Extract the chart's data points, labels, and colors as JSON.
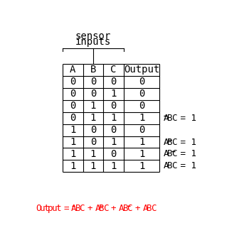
{
  "sensor_label": [
    "sensor",
    "inputs"
  ],
  "headers": [
    "A",
    "B",
    "C",
    "Output"
  ],
  "rows": [
    [
      "0",
      "0",
      "0",
      "0"
    ],
    [
      "0",
      "0",
      "1",
      "0"
    ],
    [
      "0",
      "1",
      "0",
      "0"
    ],
    [
      "0",
      "1",
      "1",
      "1"
    ],
    [
      "1",
      "0",
      "0",
      "0"
    ],
    [
      "1",
      "0",
      "1",
      "1"
    ],
    [
      "1",
      "1",
      "0",
      "1"
    ],
    [
      "1",
      "1",
      "1",
      "1"
    ]
  ],
  "annotations": [
    {
      "row": 3,
      "parts": [
        [
          "A",
          true
        ],
        [
          "B",
          false
        ],
        [
          "C",
          false
        ]
      ],
      "suffix": " = 1"
    },
    {
      "row": 5,
      "parts": [
        [
          "A",
          false
        ],
        [
          "B",
          true
        ],
        [
          "C",
          false
        ]
      ],
      "suffix": " = 1"
    },
    {
      "row": 6,
      "parts": [
        [
          "A",
          false
        ],
        [
          "B",
          false
        ],
        [
          "C",
          true
        ]
      ],
      "suffix": " = 1"
    },
    {
      "row": 7,
      "parts": [
        [
          "A",
          false
        ],
        [
          "B",
          false
        ],
        [
          "C",
          false
        ]
      ],
      "suffix": " = 1"
    }
  ],
  "eq_parts": [
    [
      "O",
      false
    ],
    [
      "u",
      false
    ],
    [
      "t",
      false
    ],
    [
      "p",
      false
    ],
    [
      "u",
      false
    ],
    [
      "t",
      false
    ],
    [
      " ",
      false
    ],
    [
      "=",
      false
    ],
    [
      " ",
      false
    ],
    [
      "A",
      true
    ],
    [
      "B",
      false
    ],
    [
      "C",
      false
    ],
    [
      " ",
      false
    ],
    [
      "+",
      false
    ],
    [
      " ",
      false
    ],
    [
      "A",
      false
    ],
    [
      "B",
      true
    ],
    [
      "C",
      false
    ],
    [
      " ",
      false
    ],
    [
      "+",
      false
    ],
    [
      " ",
      false
    ],
    [
      "A",
      false
    ],
    [
      "B",
      false
    ],
    [
      "C",
      true
    ],
    [
      " ",
      false
    ],
    [
      "+",
      false
    ],
    [
      " ",
      false
    ],
    [
      "A",
      false
    ],
    [
      "B",
      false
    ],
    [
      "C",
      false
    ]
  ],
  "table_color": "#000000",
  "ann_color": "#000000",
  "eq_color": "#ff0000",
  "bg_color": "#ffffff"
}
